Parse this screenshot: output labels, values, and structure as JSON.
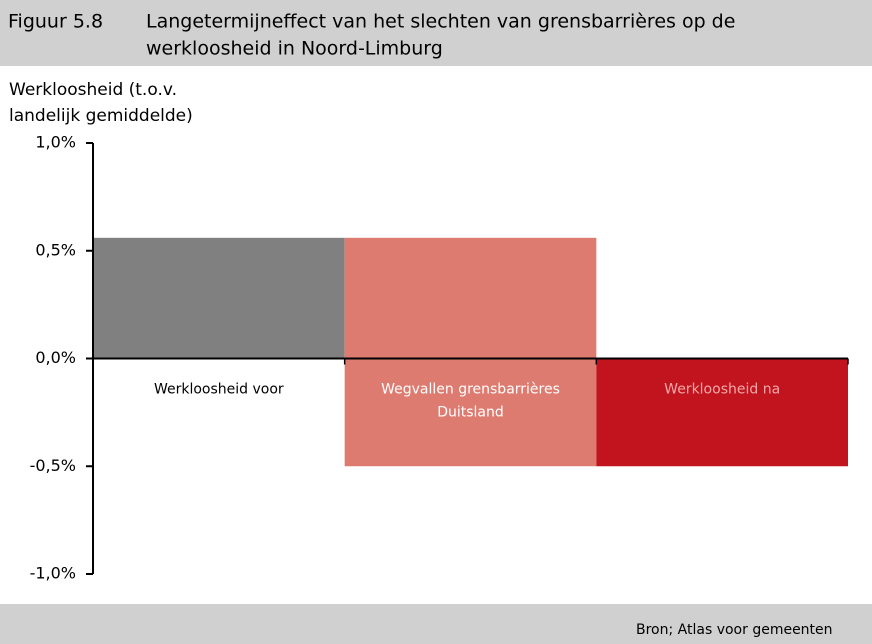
{
  "chart_data": {
    "type": "waterfall",
    "figure_label": "Figuur 5.8",
    "title": [
      "Langetermijneffect van het slechten van grensbarrières op de",
      "werkloosheid in Noord-Limburg"
    ],
    "y_label": [
      "Werkloosheid (t.o.v.",
      "landelijk gemiddelde)"
    ],
    "categories": [
      [
        "Werkloosheid voor"
      ],
      [
        "Wegvallen grensbarrières",
        "Duitsland"
      ],
      [
        "Werkloosheid na"
      ]
    ],
    "values": [
      0.56,
      -1.06,
      -0.5
    ],
    "measure": [
      "absolute",
      "relative",
      "total"
    ],
    "colors": [
      "#808080",
      "#de7b70",
      "#c1141f"
    ],
    "label_colors": [
      "#000000",
      "#ffffff",
      "#f2a8a8"
    ],
    "ylim": [
      -1,
      1
    ],
    "yticks": [
      {
        "value": 1,
        "label": "1,0%"
      },
      {
        "value": 0.5,
        "label": "0,5%"
      },
      {
        "value": 0,
        "label": "0,0%"
      },
      {
        "value": -0.5,
        "label": "-0,5%"
      },
      {
        "value": -1,
        "label": "-1,0%"
      }
    ],
    "source": "Bron; Atlas voor gemeenten"
  }
}
